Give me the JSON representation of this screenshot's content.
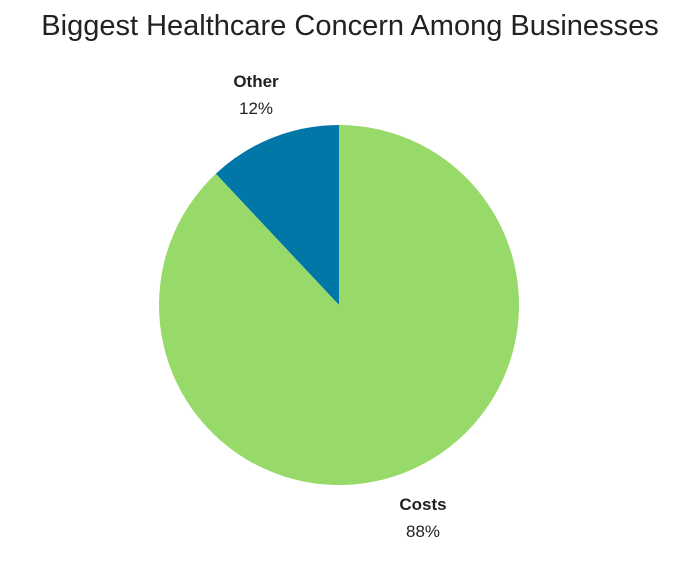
{
  "chart_data": {
    "type": "pie",
    "title": "Biggest Healthcare Concern Among Businesses",
    "start_angle_deg": 0,
    "direction": "counterclockwise",
    "slices": [
      {
        "label": "Other",
        "value": 12,
        "value_label": "12%",
        "color": "#0077a6"
      },
      {
        "label": "Costs",
        "value": 88,
        "value_label": "88%",
        "color": "#98da6a"
      }
    ]
  }
}
